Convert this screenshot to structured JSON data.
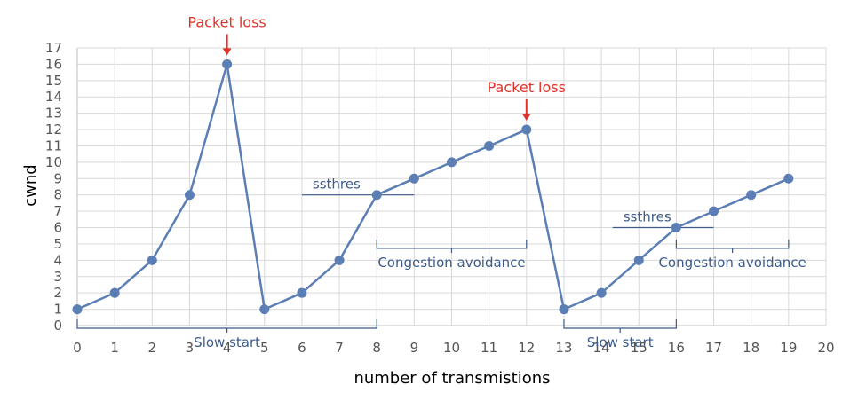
{
  "chart_data": {
    "type": "line",
    "xlabel": "number of transmistions",
    "ylabel": "cwnd",
    "xlim": [
      0,
      20
    ],
    "ylim": [
      0,
      17
    ],
    "x_ticks": [
      0,
      1,
      2,
      3,
      4,
      5,
      6,
      7,
      8,
      9,
      10,
      11,
      12,
      13,
      14,
      15,
      16,
      17,
      18,
      19,
      20
    ],
    "y_ticks": [
      0,
      1,
      2,
      3,
      4,
      5,
      6,
      7,
      8,
      9,
      10,
      11,
      12,
      13,
      14,
      15,
      16,
      17
    ],
    "grid": true,
    "series": [
      {
        "x": [
          0,
          1,
          2,
          3,
          4,
          5,
          6,
          7,
          8,
          9,
          10,
          11,
          12,
          13,
          14,
          15,
          16,
          17,
          18,
          19
        ],
        "values": [
          1,
          2,
          4,
          8,
          16,
          1,
          2,
          4,
          8,
          9,
          10,
          11,
          12,
          1,
          2,
          4,
          6,
          7,
          8,
          9
        ]
      }
    ],
    "colors": {
      "series": "#5b7fb5",
      "loss": "#e0322a",
      "annotation": "#3c5a8a",
      "grid": "#d9d9d9",
      "axis": "#bfbfbf",
      "tick_text": "#555555"
    },
    "annotations": {
      "packet_loss": [
        {
          "text": "Packet loss",
          "x": 4,
          "y": 16
        },
        {
          "text": "Packet loss",
          "x": 12,
          "y": 12
        }
      ],
      "ssthres": [
        {
          "text": "ssthres",
          "x_from": 6,
          "x_to": 9,
          "y": 8
        },
        {
          "text": "ssthres",
          "x_from": 14.3,
          "x_to": 17,
          "y": 6
        }
      ],
      "braces": [
        {
          "text": "Slow start",
          "x_from": 0,
          "x_to": 8,
          "y": 0,
          "label_side": "below"
        },
        {
          "text": "Congestion avoidance",
          "x_from": 8,
          "x_to": 12,
          "y": 5,
          "label_side": "below"
        },
        {
          "text": "Slow start",
          "x_from": 13,
          "x_to": 16,
          "y": 0,
          "label_side": "below"
        },
        {
          "text": "Congestion avoidance",
          "x_from": 16,
          "x_to": 19,
          "y": 5,
          "label_side": "below"
        }
      ]
    }
  }
}
